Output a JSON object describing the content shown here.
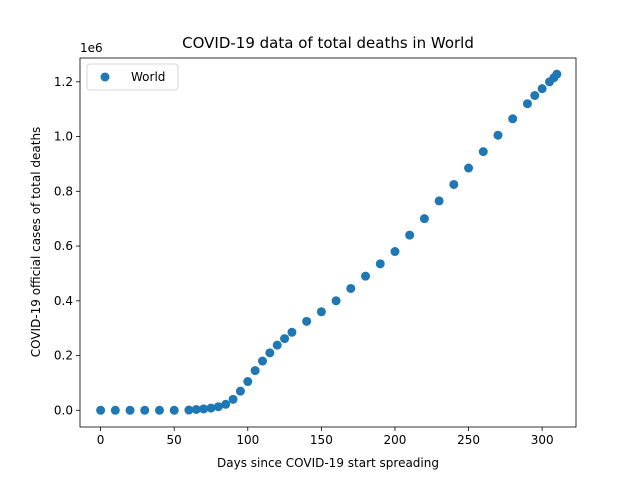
{
  "chart_data": {
    "type": "scatter",
    "title": "COVID-19 data of total deaths in World",
    "xlabel": "Days since COVID-19 start spreading",
    "ylabel": "COVID-19 official cases of total deaths",
    "y_offset_label": "1e6",
    "xlim": [
      -14,
      323
    ],
    "ylim": [
      -61000,
      1287000
    ],
    "x_ticks": [
      0,
      50,
      100,
      150,
      200,
      250,
      300
    ],
    "x_tick_labels": [
      "0",
      "50",
      "100",
      "150",
      "200",
      "250",
      "300"
    ],
    "y_ticks": [
      0,
      200000,
      400000,
      600000,
      800000,
      1000000,
      1200000
    ],
    "y_tick_labels": [
      "0.0",
      "0.2",
      "0.4",
      "0.6",
      "0.8",
      "1.0",
      "1.2"
    ],
    "grid": false,
    "legend_position": "upper-left",
    "marker_color": "#1f77b4",
    "series": [
      {
        "name": "World",
        "x": [
          0,
          10,
          20,
          30,
          40,
          50,
          60,
          65,
          70,
          75,
          80,
          85,
          90,
          95,
          100,
          105,
          110,
          115,
          120,
          125,
          130,
          140,
          150,
          160,
          170,
          180,
          190,
          200,
          210,
          220,
          230,
          240,
          250,
          260,
          270,
          280,
          290,
          295,
          300,
          305,
          308,
          310
        ],
        "y": [
          0,
          0,
          0,
          0,
          0,
          0,
          1000,
          3000,
          5000,
          8000,
          13000,
          22000,
          40000,
          70000,
          105000,
          145000,
          180000,
          210000,
          238000,
          262000,
          285000,
          325000,
          360000,
          400000,
          445000,
          490000,
          535000,
          580000,
          640000,
          700000,
          765000,
          825000,
          885000,
          945000,
          1005000,
          1065000,
          1120000,
          1150000,
          1175000,
          1200000,
          1215000,
          1228000
        ]
      }
    ]
  }
}
